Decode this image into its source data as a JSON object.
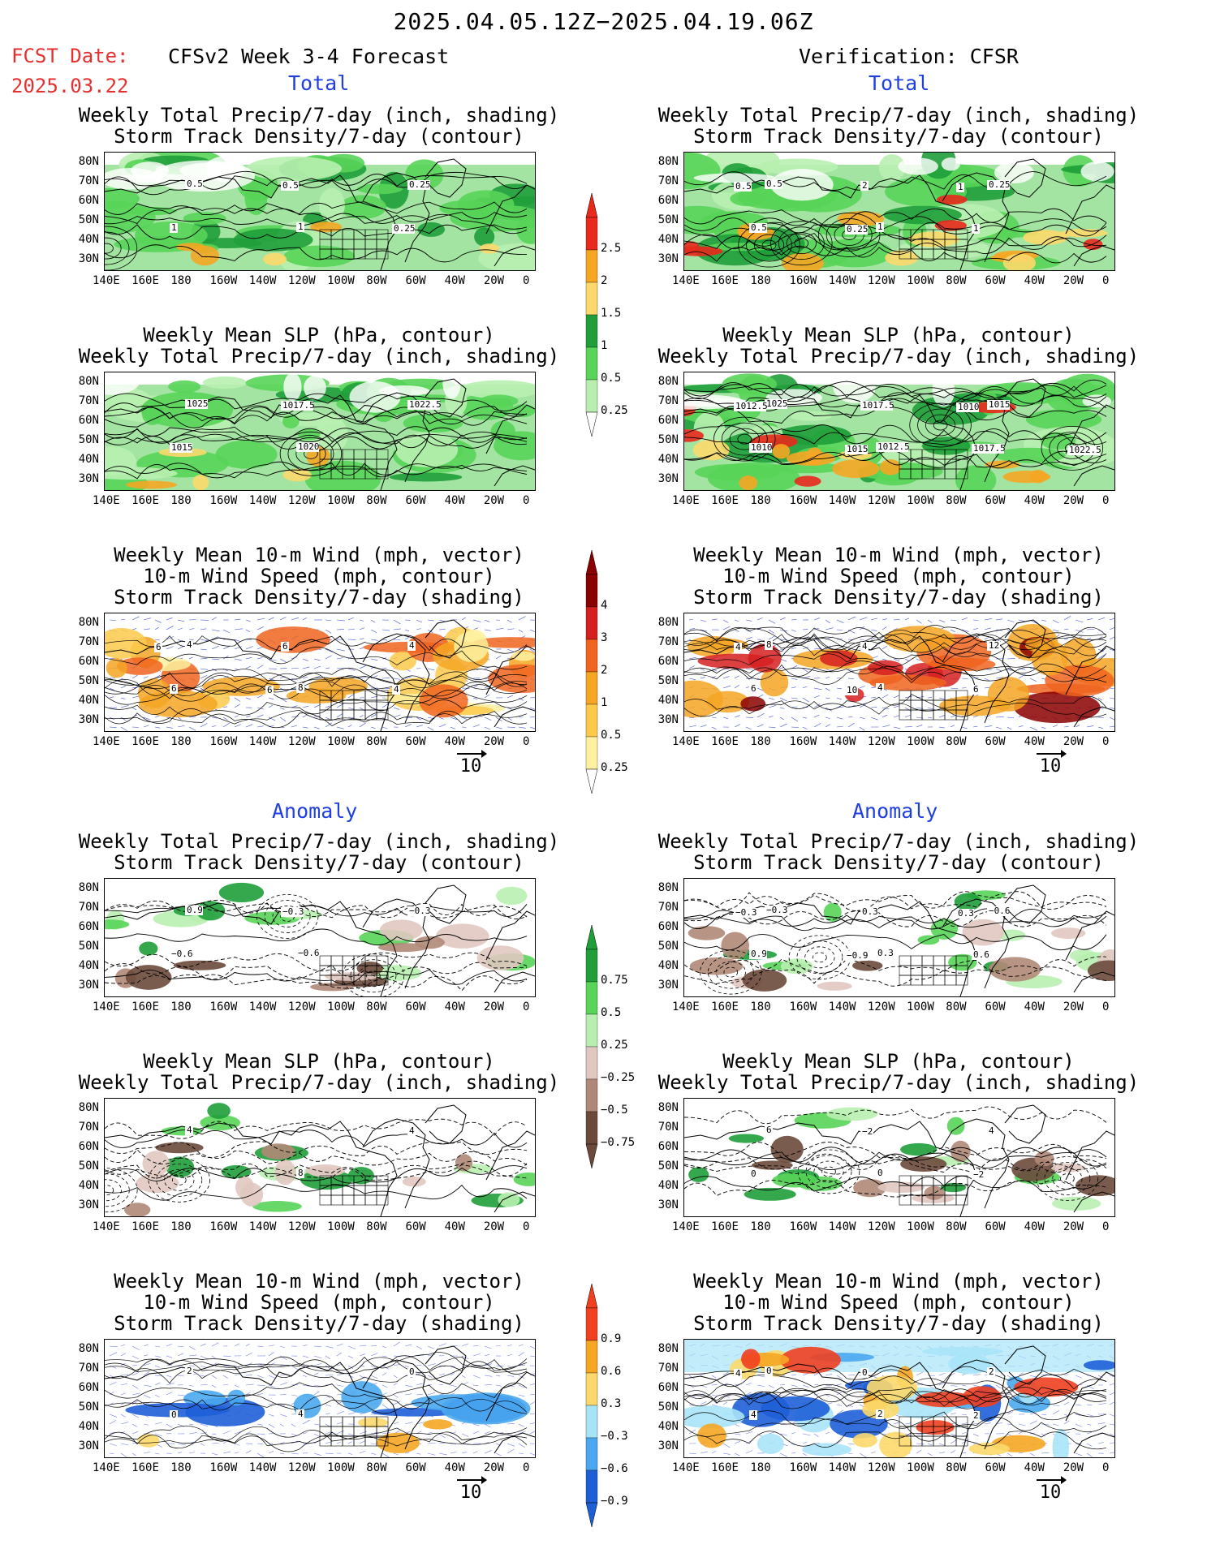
{
  "header": {
    "date_range": "2025.04.05.12Z−2025.04.19.06Z",
    "fcst_label": "FCST Date:",
    "fcst_date": "2025.03.22",
    "model_title": "CFSv2 Week 3-4 Forecast",
    "verification_title": "Verification: CFSR"
  },
  "sections": {
    "total_left": "Total",
    "total_right": "Total",
    "anomaly_left": "Anomaly",
    "anomaly_right": "Anomaly"
  },
  "panel_titles": {
    "precip_storm": [
      "Weekly Total Precip/7-day (inch, shading)",
      "Storm Track Density/7-day (contour)"
    ],
    "slp_precip": [
      "Weekly Mean SLP (hPa, contour)",
      "Weekly Total Precip/7-day (inch, shading)"
    ],
    "wind_storm": [
      "Weekly Mean 10-m Wind (mph, vector)",
      "10-m Wind Speed (mph, contour)",
      "Storm Track Density/7-day (shading)"
    ]
  },
  "axes": {
    "lat_ticks": [
      "80N",
      "70N",
      "60N",
      "50N",
      "40N",
      "30N"
    ],
    "lon_ticks": [
      "140E",
      "160E",
      "180",
      "160W",
      "140W",
      "120W",
      "100W",
      "80W",
      "60W",
      "40W",
      "20W",
      "0"
    ]
  },
  "vector_scale": "10",
  "colorbars": {
    "precip_total": {
      "labels": [
        "2.5",
        "2",
        "1.5",
        "1",
        "0.5",
        "0.25"
      ],
      "colors": [
        "#e8291c",
        "#f5a623",
        "#fcd96b",
        "#1f9e3a",
        "#58d458",
        "#b8efb0"
      ]
    },
    "storm_total": {
      "labels": [
        "4",
        "3",
        "2",
        "1",
        "0.5",
        "0.25"
      ],
      "colors": [
        "#8b0000",
        "#d62020",
        "#f0641e",
        "#f5a623",
        "#fcc94b",
        "#fdf1a0"
      ]
    },
    "precip_anom": {
      "labels": [
        "0.75",
        "0.5",
        "0.25",
        "−0.25",
        "−0.5",
        "−0.75"
      ],
      "colors": [
        "#1f9e3a",
        "#58d458",
        "#b8efb0",
        "#e0c8c0",
        "#b08878",
        "#6b4a3c"
      ]
    },
    "storm_anom": {
      "labels": [
        "0.9",
        "0.6",
        "0.3",
        "−0.3",
        "−0.6",
        "−0.9"
      ],
      "colors": [
        "#f04020",
        "#f5a623",
        "#fcd96b",
        "#a8e4f8",
        "#4aa8f0",
        "#1e5fd8"
      ]
    }
  },
  "contour_labels": {
    "fc_precip": [
      "0.5",
      "1",
      "0.25",
      "1",
      "0.5",
      "0.25"
    ],
    "fc_slp": [
      "1025",
      "1020",
      "1022.5",
      "1015",
      "1017.5"
    ],
    "fc_wind": [
      "4",
      "8",
      "4",
      "6",
      "6",
      "4",
      "6",
      "6"
    ],
    "vf_precip": [
      "0.5",
      "1",
      "0.25",
      "0.5",
      "2",
      "1",
      "0.5",
      "0.25",
      "1"
    ],
    "vf_slp": [
      "1025",
      "1012.5",
      "1015",
      "1010",
      "1017.5",
      "1017.5",
      "1012.5",
      "1015",
      "1010",
      "1022.5"
    ],
    "vf_wind": [
      "8",
      "4",
      "12",
      "6",
      "4",
      "6",
      "4",
      "10"
    ],
    "fa_precip": [
      "0.9",
      "−0.6",
      "−0.3",
      "−0.6",
      "−0.3"
    ],
    "fa_slp": [
      "4",
      "8",
      "4"
    ],
    "fa_wind": [
      "2",
      "4",
      "0",
      "0"
    ],
    "va_precip": [
      "−0.3",
      "0.3",
      "−0.6",
      "0.9",
      "0.3",
      "0.6",
      "−0.3",
      "−0.9",
      "0.3"
    ],
    "va_slp": [
      "6",
      "0",
      "4",
      "0",
      "−2",
      "−2"
    ],
    "va_wind": [
      "0",
      "2",
      "2",
      "4",
      "0",
      "2",
      "4"
    ]
  }
}
